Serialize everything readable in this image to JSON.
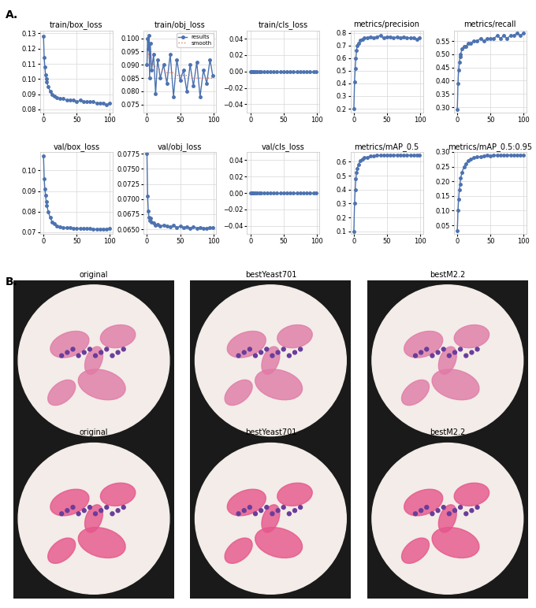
{
  "panel_labels": [
    "A.",
    "B."
  ],
  "image_titles": [
    [
      "original",
      "bestYeast701",
      "bestM2.2"
    ],
    [
      "original",
      "bestYeast701",
      "bestM2.2"
    ]
  ],
  "chart_data": [
    {
      "type": "line",
      "title": "train/box_loss",
      "grid": true,
      "x": [
        0,
        1,
        2,
        3,
        4,
        5,
        7,
        10,
        13,
        16,
        20,
        25,
        30,
        35,
        40,
        45,
        50,
        55,
        60,
        65,
        70,
        75,
        80,
        85,
        90,
        95,
        99
      ],
      "xlim": [
        -5,
        104
      ],
      "xticks": [
        0,
        50,
        100
      ],
      "ylim": [
        0.078,
        0.132
      ],
      "yticks": [
        0.08,
        0.09,
        {
          "value": 0.1,
          "label": "0.10"
        },
        0.11,
        0.12,
        0.13
      ],
      "series": [
        {
          "color": "#4c72b0",
          "marker": "o",
          "line_style": "solid",
          "values": [
            0.128,
            0.114,
            0.108,
            0.103,
            0.1,
            0.098,
            0.095,
            0.092,
            0.09,
            0.089,
            0.088,
            0.087,
            0.087,
            0.086,
            0.086,
            0.086,
            0.085,
            0.086,
            0.085,
            0.085,
            0.085,
            0.085,
            0.084,
            0.084,
            0.084,
            0.083,
            0.084
          ]
        }
      ]
    },
    {
      "type": "line",
      "title": "train/obj_loss",
      "grid": true,
      "legend": "upper right",
      "x": [
        0,
        1,
        2,
        3,
        4,
        5,
        7,
        10,
        13,
        16,
        20,
        25,
        30,
        35,
        40,
        45,
        50,
        55,
        60,
        65,
        70,
        75,
        80,
        85,
        90,
        95,
        99
      ],
      "xlim": [
        -5,
        104
      ],
      "xticks": [
        0,
        50,
        100
      ],
      "ylim": [
        0.072,
        0.103
      ],
      "yticks": [
        0.075,
        {
          "value": 0.08,
          "label": "0.080"
        },
        0.085,
        {
          "value": 0.09,
          "label": "0.090"
        },
        0.095,
        {
          "value": 0.1,
          "label": "0.100"
        }
      ],
      "series": [
        {
          "name": "results",
          "color": "#4c72b0",
          "marker": "o",
          "line_style": "solid",
          "values": [
            0.09,
            0.1,
            0.096,
            0.101,
            0.085,
            0.098,
            0.088,
            0.094,
            0.079,
            0.092,
            0.085,
            0.09,
            0.083,
            0.094,
            0.078,
            0.092,
            0.084,
            0.088,
            0.08,
            0.09,
            0.082,
            0.091,
            0.078,
            0.088,
            0.083,
            0.092,
            0.086
          ]
        },
        {
          "name": "smooth",
          "color": "#e8755a",
          "marker": "none",
          "line_style": "dotted",
          "values": [
            0.095,
            0.095,
            0.094,
            0.093,
            0.093,
            0.092,
            0.091,
            0.09,
            0.089,
            0.089,
            0.088,
            0.088,
            0.087,
            0.087,
            0.087,
            0.086,
            0.086,
            0.086,
            0.086,
            0.086,
            0.085,
            0.085,
            0.085,
            0.085,
            0.085,
            0.085,
            0.085
          ]
        }
      ]
    },
    {
      "type": "line",
      "title": "train/cls_loss",
      "grid": true,
      "x": [
        0,
        1,
        2,
        3,
        4,
        5,
        7,
        10,
        13,
        16,
        20,
        25,
        30,
        35,
        40,
        45,
        50,
        55,
        60,
        65,
        70,
        75,
        80,
        85,
        90,
        95,
        99
      ],
      "xlim": [
        -5,
        104
      ],
      "xticks": [
        0,
        50,
        100
      ],
      "ylim": [
        -0.05,
        0.05
      ],
      "yticks": [
        {
          "value": -0.04,
          "label": "−0.04"
        },
        {
          "value": -0.02,
          "label": "−0.02"
        },
        {
          "value": 0,
          "label": "0.00"
        },
        {
          "value": 0.02,
          "label": "0.02"
        },
        {
          "value": 0.04,
          "label": "0.04"
        }
      ],
      "series": [
        {
          "color": "#4c72b0",
          "marker": "o",
          "line_style": "solid",
          "values": [
            0,
            0,
            0,
            0,
            0,
            0,
            0,
            0,
            0,
            0,
            0,
            0,
            0,
            0,
            0,
            0,
            0,
            0,
            0,
            0,
            0,
            0,
            0,
            0,
            0,
            0,
            0
          ]
        }
      ]
    },
    {
      "type": "line",
      "title": "metrics/precision",
      "grid": true,
      "x": [
        0,
        1,
        2,
        3,
        4,
        5,
        7,
        10,
        13,
        16,
        20,
        25,
        30,
        35,
        40,
        45,
        50,
        55,
        60,
        65,
        70,
        75,
        80,
        85,
        90,
        95,
        99
      ],
      "xlim": [
        -5,
        104
      ],
      "xticks": [
        0,
        50,
        100
      ],
      "ylim": [
        0.17,
        0.82
      ],
      "yticks": [
        0.2,
        0.3,
        0.4,
        0.5,
        0.6,
        0.7,
        0.8
      ],
      "series": [
        {
          "color": "#4c72b0",
          "marker": "o",
          "line_style": "solid",
          "values": [
            0.2,
            0.41,
            0.52,
            0.6,
            0.66,
            0.7,
            0.72,
            0.74,
            0.75,
            0.76,
            0.76,
            0.77,
            0.76,
            0.77,
            0.78,
            0.76,
            0.77,
            0.77,
            0.76,
            0.77,
            0.76,
            0.77,
            0.76,
            0.76,
            0.76,
            0.75,
            0.76
          ]
        }
      ]
    },
    {
      "type": "line",
      "title": "metrics/recall",
      "grid": true,
      "x": [
        0,
        1,
        2,
        3,
        4,
        5,
        7,
        10,
        13,
        16,
        20,
        25,
        30,
        35,
        40,
        45,
        50,
        55,
        60,
        65,
        70,
        75,
        80,
        85,
        90,
        95,
        99
      ],
      "xlim": [
        -5,
        104
      ],
      "xticks": [
        0,
        50,
        100
      ],
      "ylim": [
        0.28,
        0.59
      ],
      "yticks": [
        {
          "value": 0.3,
          "label": "0.30"
        },
        0.35,
        {
          "value": 0.4,
          "label": "0.40"
        },
        0.45,
        {
          "value": 0.5,
          "label": "0.50"
        },
        0.55
      ],
      "series": [
        {
          "color": "#4c72b0",
          "marker": "o",
          "line_style": "solid",
          "values": [
            0.29,
            0.39,
            0.44,
            0.47,
            0.49,
            0.5,
            0.52,
            0.53,
            0.53,
            0.54,
            0.54,
            0.55,
            0.55,
            0.56,
            0.55,
            0.56,
            0.56,
            0.56,
            0.57,
            0.56,
            0.57,
            0.56,
            0.57,
            0.57,
            0.58,
            0.57,
            0.58
          ]
        }
      ]
    },
    {
      "type": "line",
      "title": "val/box_loss",
      "grid": true,
      "x": [
        0,
        1,
        2,
        3,
        4,
        5,
        7,
        10,
        13,
        16,
        20,
        25,
        30,
        35,
        40,
        45,
        50,
        55,
        60,
        65,
        70,
        75,
        80,
        85,
        90,
        95,
        99
      ],
      "xlim": [
        -5,
        104
      ],
      "xticks": [
        0,
        50,
        100
      ],
      "ylim": [
        0.069,
        0.109
      ],
      "yticks": [
        0.07,
        0.08,
        0.09,
        {
          "value": 0.1,
          "label": "0.10"
        }
      ],
      "series": [
        {
          "color": "#4c72b0",
          "marker": "o",
          "line_style": "solid",
          "values": [
            0.107,
            0.096,
            0.091,
            0.088,
            0.085,
            0.083,
            0.08,
            0.077,
            0.075,
            0.074,
            0.073,
            0.0725,
            0.0722,
            0.072,
            0.072,
            0.0718,
            0.0717,
            0.0717,
            0.0716,
            0.0716,
            0.0716,
            0.0715,
            0.0715,
            0.0715,
            0.0715,
            0.0715,
            0.0716
          ]
        }
      ]
    },
    {
      "type": "line",
      "title": "val/obj_loss",
      "grid": true,
      "x": [
        0,
        1,
        2,
        3,
        4,
        5,
        7,
        10,
        13,
        16,
        20,
        25,
        30,
        35,
        40,
        45,
        50,
        55,
        60,
        65,
        70,
        75,
        80,
        85,
        90,
        95,
        99
      ],
      "xlim": [
        -5,
        104
      ],
      "xticks": [
        0,
        50,
        100
      ],
      "ylim": [
        0.0642,
        0.0778
      ],
      "yticks": [
        {
          "value": 0.065,
          "label": "0.0650"
        },
        0.0675,
        {
          "value": 0.07,
          "label": "0.0700"
        },
        0.0725,
        {
          "value": 0.075,
          "label": "0.0750"
        },
        0.0775
      ],
      "series": [
        {
          "color": "#4c72b0",
          "marker": "o",
          "line_style": "solid",
          "values": [
            0.0775,
            0.0705,
            0.068,
            0.067,
            0.0665,
            0.0668,
            0.0662,
            0.066,
            0.0657,
            0.0658,
            0.0655,
            0.0657,
            0.0655,
            0.0654,
            0.0656,
            0.0653,
            0.0655,
            0.0653,
            0.0654,
            0.0652,
            0.0654,
            0.0652,
            0.0653,
            0.0652,
            0.0652,
            0.0653,
            0.0653
          ]
        }
      ]
    },
    {
      "type": "line",
      "title": "val/cls_loss",
      "grid": true,
      "x": [
        0,
        1,
        2,
        3,
        4,
        5,
        7,
        10,
        13,
        16,
        20,
        25,
        30,
        35,
        40,
        45,
        50,
        55,
        60,
        65,
        70,
        75,
        80,
        85,
        90,
        95,
        99
      ],
      "xlim": [
        -5,
        104
      ],
      "xticks": [
        0,
        50,
        100
      ],
      "ylim": [
        -0.05,
        0.05
      ],
      "yticks": [
        {
          "value": -0.04,
          "label": "−0.04"
        },
        {
          "value": -0.02,
          "label": "−0.02"
        },
        {
          "value": 0,
          "label": "0.00"
        },
        {
          "value": 0.02,
          "label": "0.02"
        },
        {
          "value": 0.04,
          "label": "0.04"
        }
      ],
      "series": [
        {
          "color": "#4c72b0",
          "marker": "o",
          "line_style": "solid",
          "values": [
            0,
            0,
            0,
            0,
            0,
            0,
            0,
            0,
            0,
            0,
            0,
            0,
            0,
            0,
            0,
            0,
            0,
            0,
            0,
            0,
            0,
            0,
            0,
            0,
            0,
            0,
            0
          ]
        }
      ]
    },
    {
      "type": "line",
      "title": "metrics/mAP_0.5",
      "grid": true,
      "x": [
        0,
        1,
        2,
        3,
        4,
        5,
        7,
        10,
        13,
        16,
        20,
        25,
        30,
        35,
        40,
        45,
        50,
        55,
        60,
        65,
        70,
        75,
        80,
        85,
        90,
        95,
        99
      ],
      "xlim": [
        -5,
        104
      ],
      "xticks": [
        0,
        50,
        100
      ],
      "ylim": [
        0.08,
        0.67
      ],
      "yticks": [
        0.1,
        0.2,
        0.3,
        0.4,
        0.5,
        0.6
      ],
      "series": [
        {
          "color": "#4c72b0",
          "marker": "o",
          "line_style": "solid",
          "values": [
            0.1,
            0.3,
            0.4,
            0.48,
            0.52,
            0.55,
            0.58,
            0.61,
            0.62,
            0.63,
            0.63,
            0.64,
            0.64,
            0.645,
            0.645,
            0.65,
            0.645,
            0.65,
            0.645,
            0.65,
            0.65,
            0.645,
            0.65,
            0.645,
            0.645,
            0.645,
            0.645
          ]
        }
      ]
    },
    {
      "type": "line",
      "title": "metrics/mAP_0.5:0.95",
      "grid": true,
      "x": [
        0,
        1,
        2,
        3,
        4,
        5,
        7,
        10,
        13,
        16,
        20,
        25,
        30,
        35,
        40,
        45,
        50,
        55,
        60,
        65,
        70,
        75,
        80,
        85,
        90,
        95,
        99
      ],
      "xlim": [
        -5,
        104
      ],
      "xticks": [
        0,
        50,
        100
      ],
      "ylim": [
        0.02,
        0.3
      ],
      "yticks": [
        0.05,
        {
          "value": 0.1,
          "label": "0.10"
        },
        0.15,
        {
          "value": 0.2,
          "label": "0.20"
        },
        0.25,
        {
          "value": 0.3,
          "label": "0.30"
        }
      ],
      "series": [
        {
          "color": "#4c72b0",
          "marker": "o",
          "line_style": "solid",
          "values": [
            0.03,
            0.1,
            0.14,
            0.17,
            0.19,
            0.21,
            0.23,
            0.25,
            0.26,
            0.27,
            0.275,
            0.28,
            0.283,
            0.285,
            0.286,
            0.288,
            0.287,
            0.289,
            0.288,
            0.29,
            0.289,
            0.29,
            0.29,
            0.289,
            0.29,
            0.29,
            0.29
          ]
        }
      ]
    }
  ]
}
